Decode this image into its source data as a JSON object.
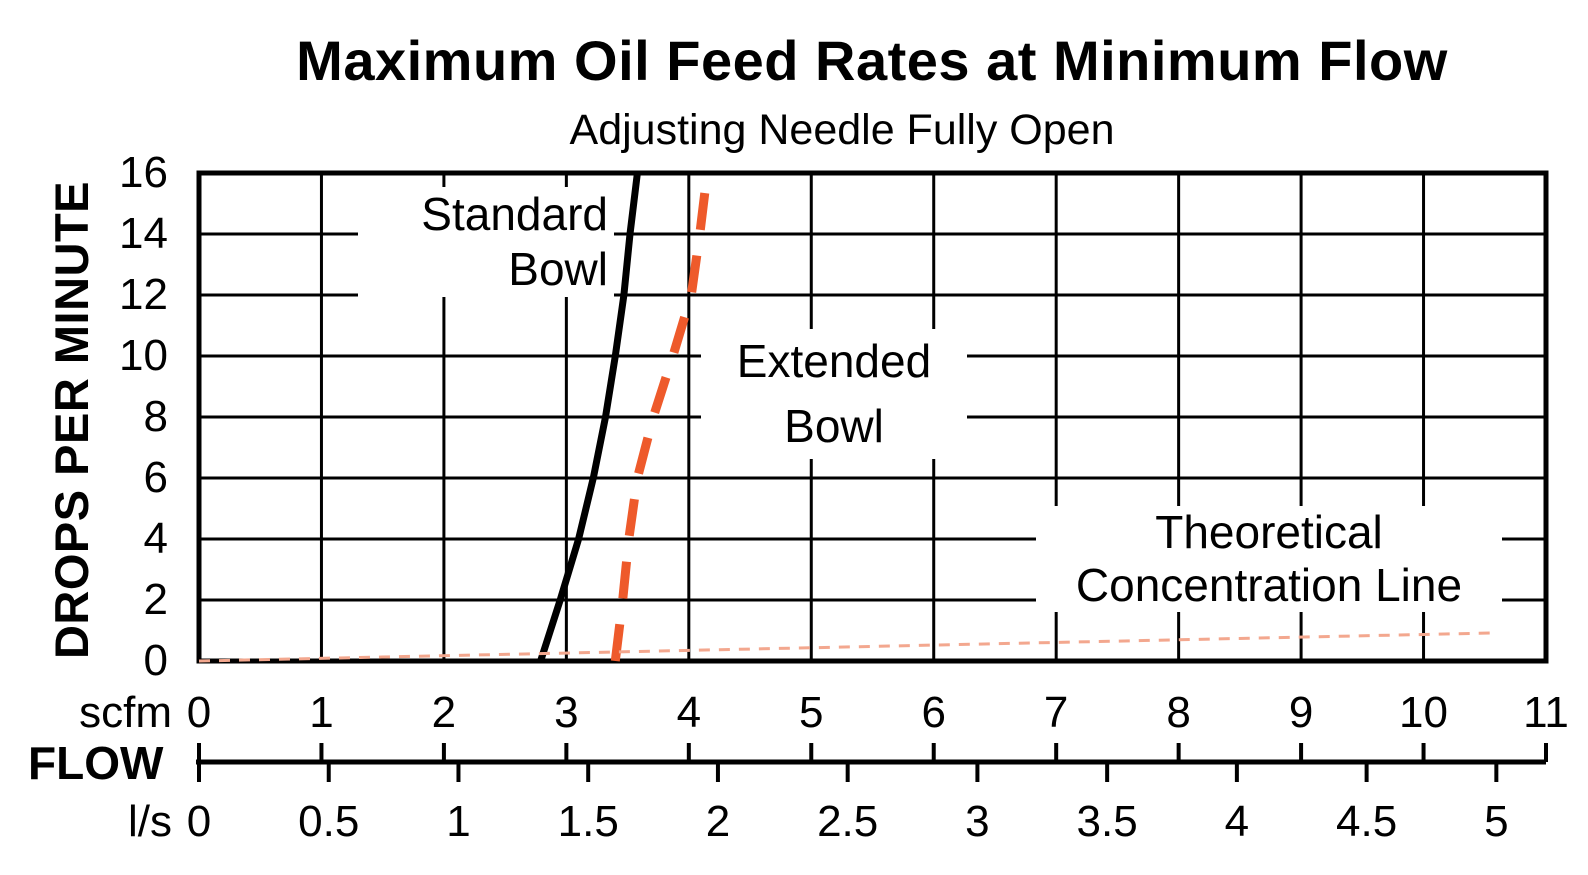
{
  "page": {
    "title": "Maximum Oil Feed Rates at Minimum Flow",
    "subtitle": "Adjusting Needle Fully Open"
  },
  "axes": {
    "y_label": "DROPS PER MINUTE",
    "flow_label": "FLOW",
    "scfm_unit": "scfm",
    "ls_unit": "l/s"
  },
  "annotations": {
    "standard": {
      "line1": "Standard",
      "line2": "Bowl"
    },
    "extended": {
      "line1": "Extended",
      "line2": "Bowl"
    },
    "theoretical": {
      "line1": "Theoretical",
      "line2": "Concentration Line"
    }
  },
  "colors": {
    "foreground": "#000000",
    "extended_bowl_line": "#EE5A2B",
    "theoretical_line": "#F3A78E"
  },
  "chart_data": {
    "type": "line",
    "title": "Maximum Oil Feed Rates at Minimum Flow",
    "subtitle": "Adjusting Needle Fully Open",
    "ylabel": "DROPS PER MINUTE",
    "xlabel": "FLOW",
    "x_units": [
      "scfm",
      "l/s"
    ],
    "xlim_scfm": [
      0,
      11
    ],
    "xlim_ls": [
      0,
      5
    ],
    "ylim": [
      0,
      16
    ],
    "x_ticks_scfm": [
      0,
      1,
      2,
      3,
      4,
      5,
      6,
      7,
      8,
      9,
      10,
      11
    ],
    "x_ticks_ls": [
      0,
      0.5,
      1,
      1.5,
      2,
      2.5,
      3,
      3.5,
      4,
      4.5,
      5
    ],
    "y_ticks": [
      0,
      2,
      4,
      6,
      8,
      10,
      12,
      14,
      16
    ],
    "ls_to_scfm_factor": 2.1189,
    "grid": true,
    "legend_position": "inline-annotations",
    "series": [
      {
        "name": "Standard Bowl",
        "line_style": "solid",
        "color": "#000000",
        "stroke_width": 7,
        "points_scfm_drops": [
          [
            2.79,
            0
          ],
          [
            2.95,
            2
          ],
          [
            3.1,
            4
          ],
          [
            3.22,
            6
          ],
          [
            3.32,
            8
          ],
          [
            3.4,
            10
          ],
          [
            3.47,
            12
          ],
          [
            3.52,
            14
          ],
          [
            3.58,
            16
          ]
        ]
      },
      {
        "name": "Extended Bowl",
        "line_style": "dashed",
        "color": "#EE5A2B",
        "stroke_width": 9,
        "points_scfm_drops": [
          [
            3.4,
            0
          ],
          [
            3.46,
            2
          ],
          [
            3.51,
            4
          ],
          [
            3.58,
            6
          ],
          [
            3.71,
            8
          ],
          [
            3.87,
            10
          ],
          [
            4.02,
            12
          ],
          [
            4.09,
            14
          ],
          [
            4.15,
            16
          ]
        ]
      },
      {
        "name": "Theoretical Concentration Line",
        "line_style": "dotted",
        "color": "#F3A78E",
        "stroke_width": 3,
        "points_scfm_drops": [
          [
            0,
            0
          ],
          [
            10.59,
            0.92
          ]
        ]
      }
    ]
  }
}
